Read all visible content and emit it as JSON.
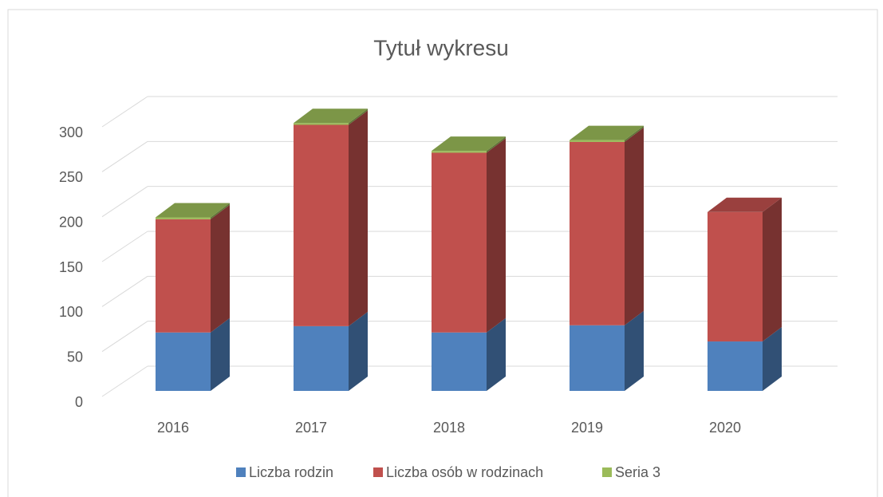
{
  "chart_data": {
    "type": "bar3d_stacked",
    "title": "Tytuł wykresu",
    "categories": [
      "2016",
      "2017",
      "2018",
      "2019",
      "2020"
    ],
    "series": [
      {
        "name": "Liczba rodzin",
        "color": "#4f81bd",
        "values": [
          65,
          72,
          65,
          73,
          55
        ]
      },
      {
        "name": "Liczba osób w rodzinach",
        "color": "#c0504d",
        "values": [
          126,
          224,
          200,
          204,
          144
        ]
      },
      {
        "name": "Seria 3",
        "color": "#9bbb59",
        "values": [
          2,
          2,
          2,
          2,
          0
        ]
      }
    ],
    "ylim": [
      0,
      300
    ],
    "yticks": [
      0,
      50,
      100,
      150,
      200,
      250,
      300
    ],
    "grid": true,
    "legend": "bottom"
  }
}
